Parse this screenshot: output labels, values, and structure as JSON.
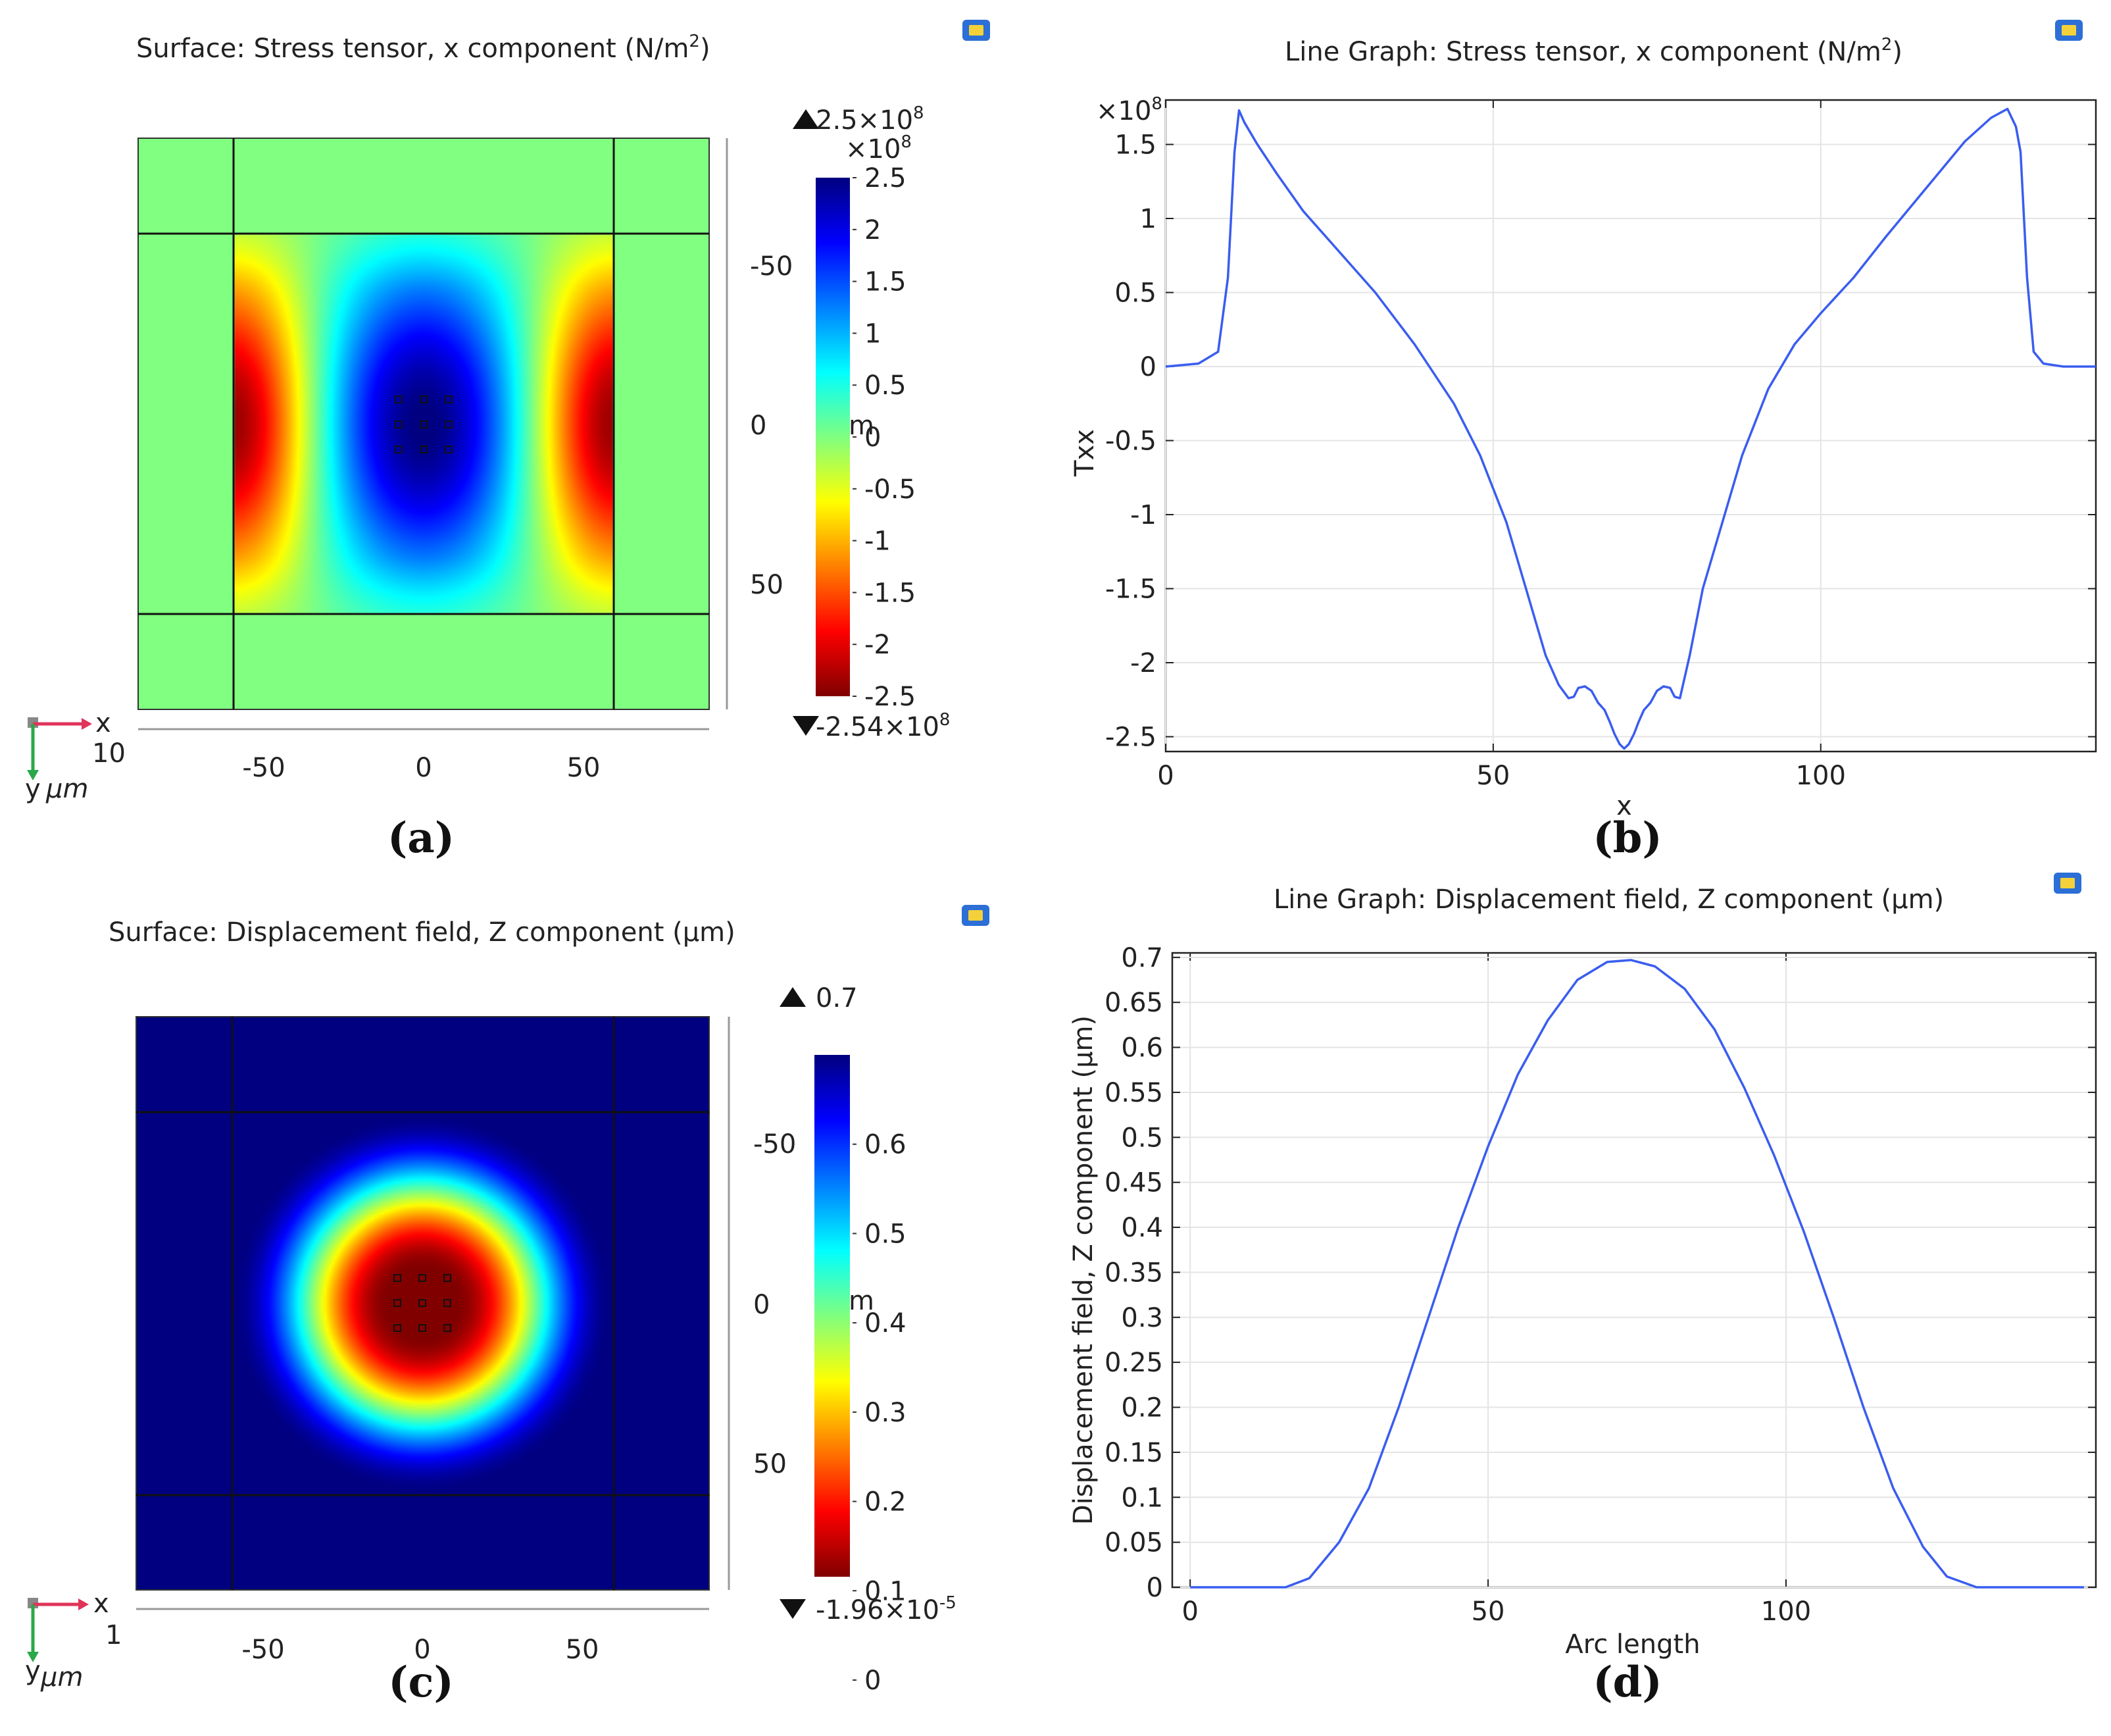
{
  "figure": {
    "panels": [
      {
        "id": "a",
        "caption": "(a)",
        "title": "Surface: Stress tensor, x component (N/m",
        "title_sup": "2",
        "title_end": ")"
      },
      {
        "id": "b",
        "caption": "(b)",
        "title": "Line Graph: Stress tensor, x component (N/m",
        "title_sup": "2",
        "title_end": ")"
      },
      {
        "id": "c",
        "caption": "(c)",
        "title": "Surface: Displacement field, Z component (µm)"
      },
      {
        "id": "d",
        "caption": "(d)",
        "title": "Line Graph: Displacement field, Z component (µm)"
      }
    ]
  },
  "chart_data": [
    {
      "type": "heatmap",
      "panel": "a",
      "title": "Surface: Stress tensor, x component (N/m²)",
      "quantity": "Stress tensor, x component",
      "colormap": "rainbow (red = min, blue = max)",
      "domain_um": {
        "x": [
          -90,
          90
        ],
        "y": [
          -90,
          90
        ]
      },
      "interior_lines_um": [
        -60,
        60
      ],
      "x_ticks": [
        -50,
        0,
        50
      ],
      "y_ticks": [
        -50,
        0,
        50
      ],
      "x_axis_labels": [
        "-50",
        "0",
        "50"
      ],
      "y_axis_labels": [
        "-50",
        "0",
        "50"
      ],
      "colorbar": {
        "multiplier": "×10",
        "multiplier_exp": "8",
        "min": -2.5,
        "max": 2.5,
        "ticks": [
          "2.5",
          "2",
          "1.5",
          "1",
          "0.5",
          "0",
          "-0.5",
          "-1",
          "-1.5",
          "-2",
          "-2.5"
        ],
        "unit_glyph": "m"
      },
      "max_label": "2.5×10",
      "max_exp": "8",
      "min_label": "-2.54×10",
      "min_exp": "8",
      "axis_triad": {
        "x": "x",
        "y": "y",
        "unit": "µm",
        "scale": "10"
      },
      "field_model": {
        "background": 0,
        "center_min": -2.54,
        "center_sigma_x_um": 24,
        "center_sigma_y_um": 36,
        "edge_max": 2.5,
        "edge_sigma_x_um": 18,
        "edge_sigma_y_um": 34
      }
    },
    {
      "type": "line",
      "panel": "b",
      "title": "Line Graph: Stress tensor, x component (N/m²)",
      "xlabel": "x",
      "ylabel": "Txx",
      "y_multiplier": "×10",
      "y_multiplier_exp": "8",
      "xlim": [
        0,
        142
      ],
      "ylim": [
        -2.6,
        1.8
      ],
      "x_ticks": [
        0,
        50,
        100
      ],
      "y_ticks": [
        1.5,
        1,
        0.5,
        0,
        -0.5,
        -1,
        -1.5,
        -2,
        -2.5
      ],
      "x_tick_labels": [
        "0",
        "50",
        "100"
      ],
      "y_tick_labels": [
        "1.5",
        "1",
        "0.5",
        "0",
        "-0.5",
        "-1",
        "-1.5",
        "-2",
        "-2.5"
      ],
      "grid": true,
      "series": [
        {
          "name": "Txx",
          "color": "#3a5df0",
          "x": [
            0,
            5,
            8,
            9.5,
            10.5,
            11.2,
            12,
            14,
            17,
            21,
            26,
            32,
            38,
            44,
            48,
            52,
            55,
            58,
            60,
            61.5,
            62.3,
            63,
            64,
            65,
            66,
            67,
            67.8,
            68.5,
            69.3,
            70,
            70.7,
            71.5,
            72.2,
            73,
            74,
            75,
            76,
            77,
            77.7,
            78.5,
            80,
            82,
            85,
            88,
            92,
            96,
            100,
            105,
            110,
            116,
            122,
            126,
            128.5,
            129.8,
            130.5,
            131.5,
            132.5,
            134,
            137,
            142
          ],
          "y": [
            0,
            0.02,
            0.1,
            0.6,
            1.45,
            1.73,
            1.65,
            1.5,
            1.3,
            1.05,
            0.8,
            0.5,
            0.15,
            -0.25,
            -0.6,
            -1.05,
            -1.5,
            -1.95,
            -2.15,
            -2.24,
            -2.23,
            -2.17,
            -2.16,
            -2.19,
            -2.27,
            -2.32,
            -2.4,
            -2.48,
            -2.55,
            -2.58,
            -2.55,
            -2.48,
            -2.4,
            -2.32,
            -2.27,
            -2.19,
            -2.16,
            -2.17,
            -2.23,
            -2.24,
            -1.95,
            -1.5,
            -1.05,
            -0.6,
            -0.15,
            0.15,
            0.36,
            0.6,
            0.88,
            1.2,
            1.52,
            1.68,
            1.74,
            1.62,
            1.45,
            0.6,
            0.1,
            0.02,
            0,
            0
          ]
        }
      ]
    },
    {
      "type": "heatmap",
      "panel": "c",
      "title": "Surface: Displacement field, Z component (µm)",
      "quantity": "Displacement field, Z component",
      "colormap": "rainbow (red = min, blue = max)",
      "domain_um": {
        "x": [
          -90,
          90
        ],
        "y": [
          -90,
          90
        ]
      },
      "interior_lines_um": [
        -60,
        60
      ],
      "x_ticks": [
        -50,
        0,
        50
      ],
      "y_ticks": [
        -50,
        0,
        50
      ],
      "x_axis_labels": [
        "-50",
        "0",
        "50"
      ],
      "y_axis_labels": [
        "-50",
        "0",
        "50"
      ],
      "colorbar": {
        "multiplier": "",
        "multiplier_exp": "",
        "min": 0,
        "max": 0.7,
        "ticks": [
          "0.6",
          "0.5",
          "0.4",
          "0.3",
          "0.2",
          "0.1",
          "0"
        ],
        "unit_glyph": "m"
      },
      "max_label": "0.7",
      "max_exp": "",
      "min_label": "-1.96×10",
      "min_exp": "-5",
      "axis_triad": {
        "x": "x",
        "y": "y",
        "unit": "µm",
        "scale": "1"
      },
      "field_model": {
        "peak": 0.7,
        "flat_radius_um": 10,
        "falloff_radius_um": 60
      }
    },
    {
      "type": "line",
      "panel": "d",
      "title": "Line Graph: Displacement field, Z component (µm)",
      "xlabel": "Arc length",
      "ylabel": "Displacement field, Z component (µm)",
      "xlim": [
        -3,
        152
      ],
      "ylim": [
        0,
        0.705
      ],
      "x_ticks": [
        0,
        50,
        100
      ],
      "y_ticks": [
        0.7,
        0.65,
        0.6,
        0.55,
        0.5,
        0.45,
        0.4,
        0.35,
        0.3,
        0.25,
        0.2,
        0.15,
        0.1,
        0.05,
        0
      ],
      "x_tick_labels": [
        "0",
        "50",
        "100"
      ],
      "y_tick_labels": [
        "0.7",
        "0.65",
        "0.6",
        "0.55",
        "0.5",
        "0.45",
        "0.4",
        "0.35",
        "0.3",
        "0.25",
        "0.2",
        "0.15",
        "0.1",
        "0.05",
        "0"
      ],
      "grid": true,
      "series": [
        {
          "name": "Displacement field, Z component",
          "color": "#3a5df0",
          "x": [
            0,
            8,
            16,
            20,
            25,
            30,
            35,
            40,
            45,
            50,
            55,
            60,
            65,
            70,
            74,
            78,
            83,
            88,
            93,
            98,
            103,
            108,
            113,
            118,
            123,
            127,
            132,
            136,
            142,
            150
          ],
          "y": [
            0,
            0,
            0,
            0.01,
            0.05,
            0.11,
            0.2,
            0.3,
            0.4,
            0.49,
            0.57,
            0.63,
            0.675,
            0.695,
            0.697,
            0.69,
            0.665,
            0.62,
            0.555,
            0.48,
            0.395,
            0.3,
            0.2,
            0.11,
            0.045,
            0.012,
            0,
            0,
            0,
            0
          ]
        }
      ]
    }
  ]
}
